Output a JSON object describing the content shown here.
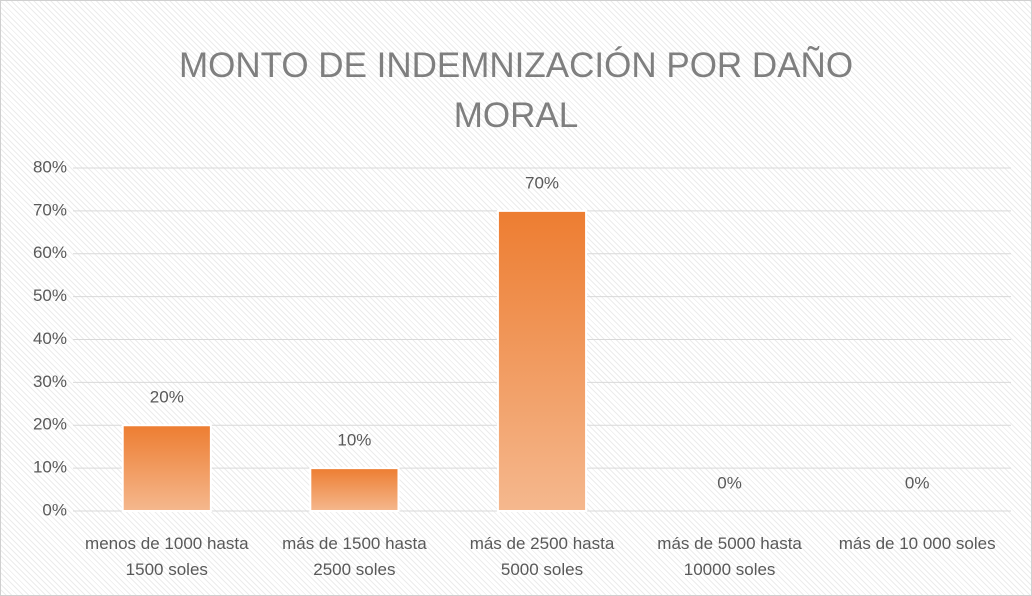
{
  "chart_data": {
    "type": "bar",
    "title": "MONTO DE INDEMNIZACIÓN POR DAÑO MORAL",
    "categories": [
      "menos de 1000 hasta 1500 soles",
      "más de 1500 hasta 2500 soles",
      "más de 2500 hasta 5000 soles",
      "más de 5000 hasta 10000 soles",
      "más de 10 000 soles"
    ],
    "values": [
      20,
      10,
      70,
      0,
      0
    ],
    "value_labels": [
      "20%",
      "10%",
      "70%",
      "0%",
      "0%"
    ],
    "color": "#ed7d31",
    "ylim": [
      0,
      80
    ],
    "yticks": [
      {
        "value": 0,
        "label": "0%"
      },
      {
        "value": 10,
        "label": "10%"
      },
      {
        "value": 20,
        "label": "20%"
      },
      {
        "value": 30,
        "label": "30%"
      },
      {
        "value": 40,
        "label": "40%"
      },
      {
        "value": 50,
        "label": "50%"
      },
      {
        "value": 60,
        "label": "60%"
      },
      {
        "value": 70,
        "label": "70%"
      },
      {
        "value": 80,
        "label": "80%"
      }
    ],
    "grid": true
  }
}
